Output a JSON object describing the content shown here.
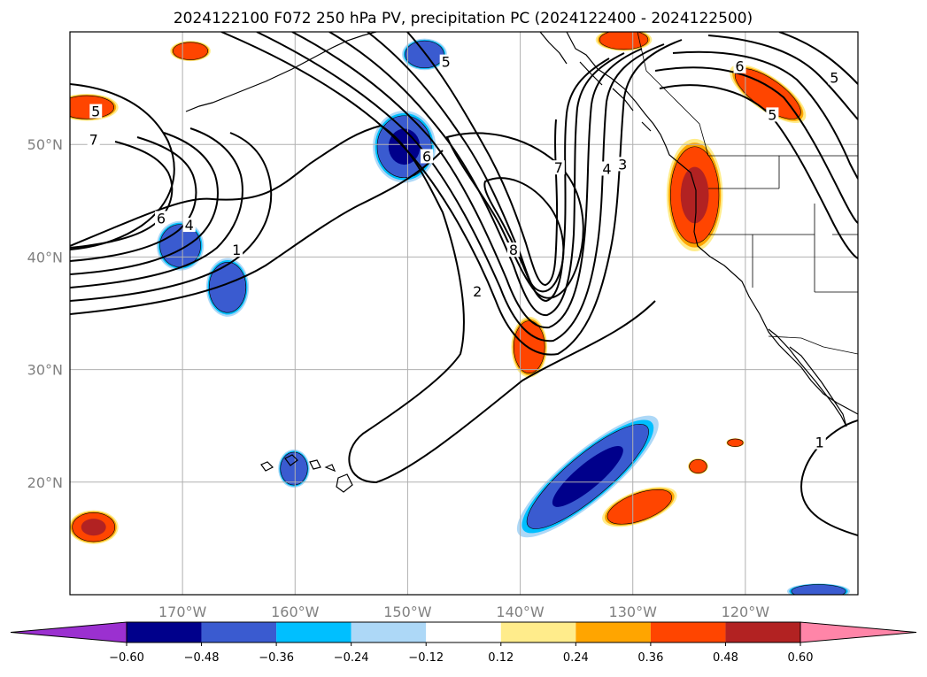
{
  "title": "2024122100 F072 250 hPa PV, precipitation PC (2024122400 - 2024122500)",
  "map": {
    "projection": "PlateCarree",
    "lon_range": [
      -180,
      -110
    ],
    "lat_range": [
      10,
      60
    ],
    "gridlines": true,
    "lon_ticks": [
      {
        "lon": -170,
        "label": "170°W"
      },
      {
        "lon": -160,
        "label": "160°W"
      },
      {
        "lon": -150,
        "label": "150°W"
      },
      {
        "lon": -140,
        "label": "140°W"
      },
      {
        "lon": -130,
        "label": "130°W"
      },
      {
        "lon": -120,
        "label": "120°W"
      }
    ],
    "lat_ticks": [
      {
        "lat": 20,
        "label": "20°N"
      },
      {
        "lat": 30,
        "label": "30°N"
      },
      {
        "lat": 40,
        "label": "40°N"
      },
      {
        "lat": 50,
        "label": "50°N"
      }
    ]
  },
  "pv_contour_labels": [
    {
      "text": "5",
      "lon": -177.7,
      "lat": 52.8
    },
    {
      "text": "7",
      "lon": -177.9,
      "lat": 50.3
    },
    {
      "text": "6",
      "lon": -171.9,
      "lat": 43.3
    },
    {
      "text": "4",
      "lon": -169.4,
      "lat": 42.7
    },
    {
      "text": "1",
      "lon": -165.2,
      "lat": 40.5
    },
    {
      "text": "5",
      "lon": -146.6,
      "lat": 57.2
    },
    {
      "text": "6",
      "lon": -148.3,
      "lat": 48.8
    },
    {
      "text": "7",
      "lon": -136.6,
      "lat": 47.8
    },
    {
      "text": "8",
      "lon": -140.6,
      "lat": 40.5
    },
    {
      "text": "2",
      "lon": -143.8,
      "lat": 36.8
    },
    {
      "text": "4",
      "lon": -132.3,
      "lat": 47.7
    },
    {
      "text": "3",
      "lon": -130.9,
      "lat": 48.1
    },
    {
      "text": "6",
      "lon": -120.5,
      "lat": 56.8
    },
    {
      "text": "5",
      "lon": -117.6,
      "lat": 52.5
    },
    {
      "text": "5",
      "lon": -112.1,
      "lat": 55.8
    },
    {
      "text": "1",
      "lon": -113.4,
      "lat": 23.4
    }
  ],
  "precip_regions": [
    {
      "name": "aleutian-neg",
      "level": -0.36,
      "lon": -148.5,
      "lat": 58.0,
      "rlon": 2.0,
      "rlat": 1.4
    },
    {
      "name": "gulf-neg",
      "level": -0.48,
      "lon": -150.3,
      "lat": 49.8,
      "rlon": 2.8,
      "rlat": 3.2
    },
    {
      "name": "west-neg-1",
      "level": -0.36,
      "lon": -170.2,
      "lat": 41.0,
      "rlon": 2.1,
      "rlat": 2.2
    },
    {
      "name": "west-neg-2",
      "level": -0.36,
      "lon": -166.0,
      "lat": 37.3,
      "rlon": 1.9,
      "rlat": 2.6
    },
    {
      "name": "hawaii-neg",
      "level": -0.36,
      "lon": -160.1,
      "lat": 21.2,
      "rlon": 1.4,
      "rlat": 1.7
    },
    {
      "name": "subtrop-neg",
      "level": -0.48,
      "lon": -134.0,
      "lat": 20.5,
      "rlon": 8.0,
      "rlat": 2.2,
      "rot": -40
    },
    {
      "name": "se-neg",
      "level": -0.36,
      "lon": -113.5,
      "lat": 10.3,
      "rlon": 2.8,
      "rlat": 0.7
    },
    {
      "name": "aleutian-pos",
      "level": 0.36,
      "lon": -169.3,
      "lat": 58.3,
      "rlon": 1.8,
      "rlat": 0.9
    },
    {
      "name": "westedge-pos",
      "level": 0.36,
      "lon": -178.5,
      "lat": 53.3,
      "rlon": 2.8,
      "rlat": 1.2
    },
    {
      "name": "alaska-pos",
      "level": 0.36,
      "lon": -130.8,
      "lat": 59.3,
      "rlon": 2.5,
      "rlat": 1.0
    },
    {
      "name": "nw-pos",
      "level": 0.36,
      "lon": -118.0,
      "lat": 54.5,
      "rlon": 4.0,
      "rlat": 1.5,
      "rot": 35
    },
    {
      "name": "coast-pos",
      "level": 0.48,
      "lon": -124.5,
      "lat": 45.5,
      "rlon": 2.5,
      "rlat": 5.0
    },
    {
      "name": "jet-pos",
      "level": 0.36,
      "lon": -139.2,
      "lat": 32.0,
      "rlon": 1.6,
      "rlat": 2.7
    },
    {
      "name": "trop-pos",
      "level": 0.36,
      "lon": -129.4,
      "lat": 17.8,
      "rlon": 3.5,
      "rlat": 1.4,
      "rot": -20
    },
    {
      "name": "small-pos-1",
      "level": 0.36,
      "lon": -124.2,
      "lat": 21.4,
      "rlon": 0.9,
      "rlat": 0.7
    },
    {
      "name": "small-pos-2",
      "level": 0.36,
      "lon": -120.9,
      "lat": 23.5,
      "rlon": 0.8,
      "rlat": 0.4
    },
    {
      "name": "sw-pos",
      "level": 0.48,
      "lon": -177.9,
      "lat": 16.0,
      "rlon": 2.2,
      "rlat": 1.5
    }
  ],
  "colorbar": {
    "colors": [
      "#9b30d0",
      "#00008b",
      "#3a5bd0",
      "#00bfff",
      "#add8f7",
      "#ffffff",
      "#ffec8b",
      "#ffa500",
      "#ff4500",
      "#b22222",
      "#ff85a8"
    ],
    "ticks": [
      "−0.60",
      "−0.48",
      "−0.36",
      "−0.24",
      "−0.12",
      "0.12",
      "0.24",
      "0.36",
      "0.48",
      "0.60"
    ],
    "extend": "both"
  }
}
